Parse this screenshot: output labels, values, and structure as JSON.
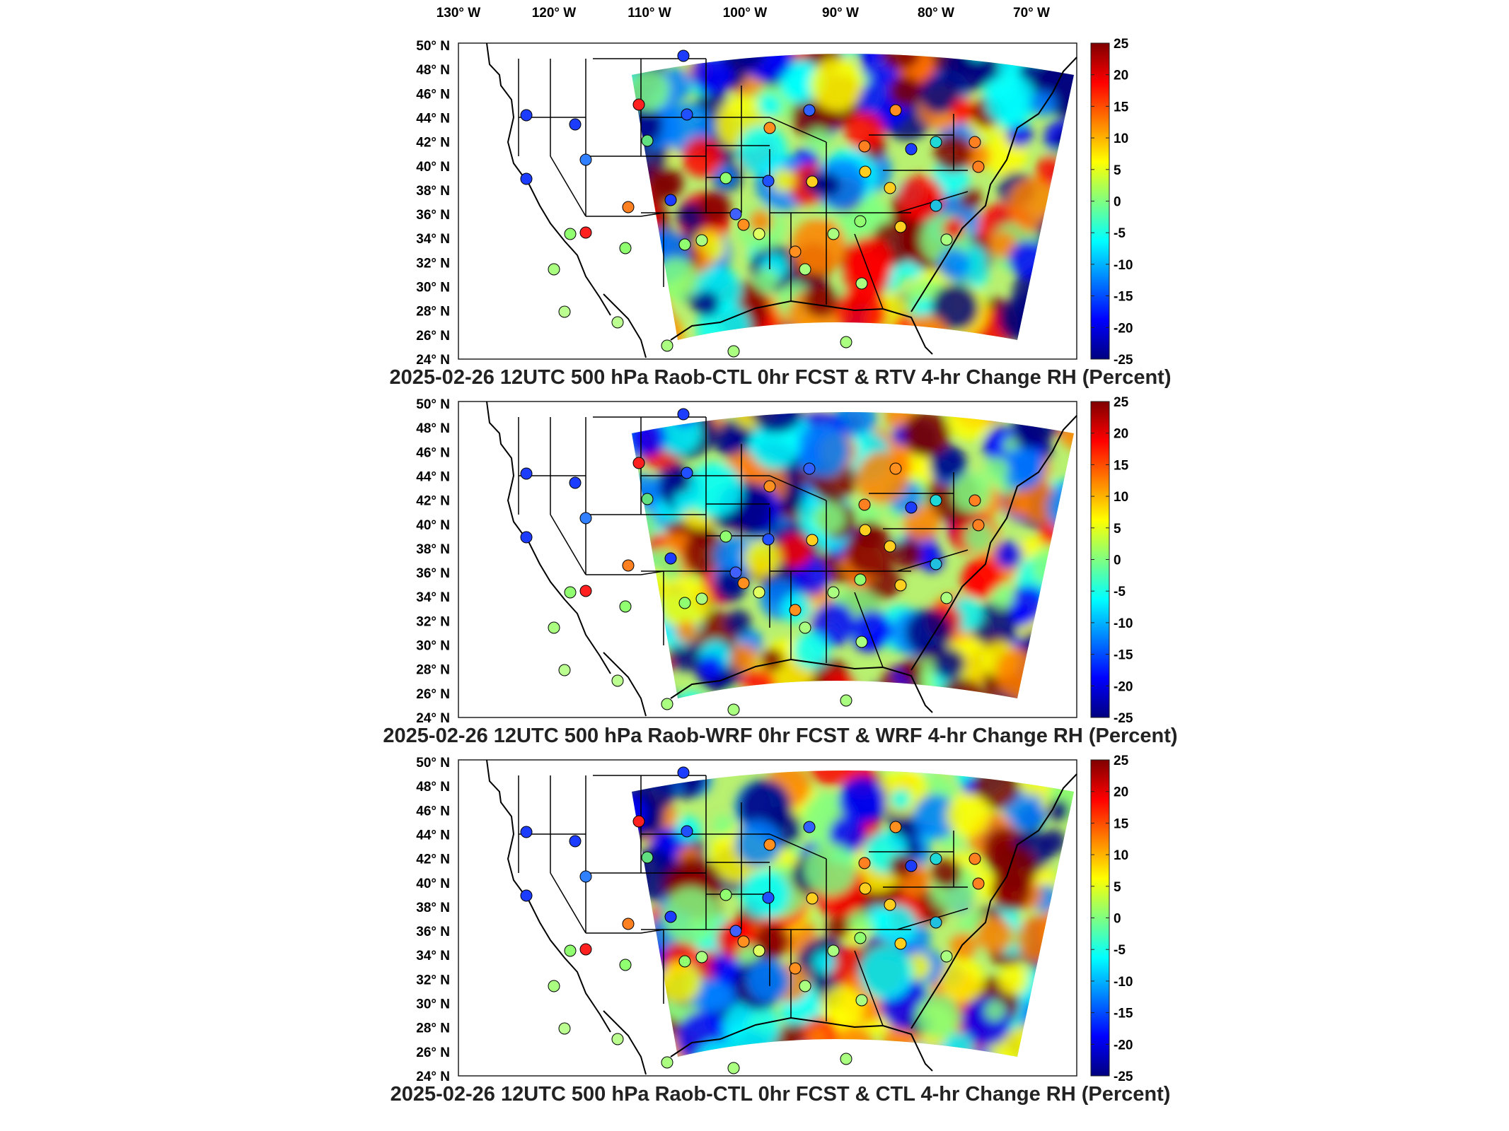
{
  "figure": {
    "lon_labels": [
      "130",
      "120",
      "110",
      "100",
      "90",
      "80",
      "70"
    ],
    "lon_suffix": "W",
    "lat_labels": [
      "50",
      "48",
      "46",
      "44",
      "42",
      "40",
      "38",
      "36",
      "34",
      "32",
      "30",
      "28",
      "26",
      "24"
    ],
    "lat_suffix": "N",
    "degree_symbol": "°",
    "colorbar_ticks": [
      "25",
      "20",
      "15",
      "10",
      "5",
      "0",
      "-5",
      "-10",
      "-15",
      "-20",
      "-25"
    ],
    "colorbar_range": [
      -25,
      25
    ],
    "colormap": "jet",
    "colormap_stops": [
      "#00007f",
      "#0000ff",
      "#0080ff",
      "#00ffff",
      "#80ff80",
      "#ffff00",
      "#ff8000",
      "#ff0000",
      "#7f0000"
    ],
    "domain": {
      "lon_range": [
        -130,
        -65
      ],
      "lat_range": [
        24,
        50
      ]
    }
  },
  "panels": [
    {
      "title": "2025-02-26 12UTC 500 hPa Raob-CTL 0hr FCST & RTV 4-hr Change RH (Percent)",
      "stations_shown": true
    },
    {
      "title": "2025-02-26 12UTC 500 hPa Raob-WRF 0hr FCST & WRF 4-hr Change RH (Percent)",
      "stations_shown": true
    },
    {
      "title": "2025-02-26 12UTC 500 hPa Raob-CTL 0hr FCST & CTL 4-hr Change RH (Percent)",
      "stations_shown": true
    }
  ]
}
